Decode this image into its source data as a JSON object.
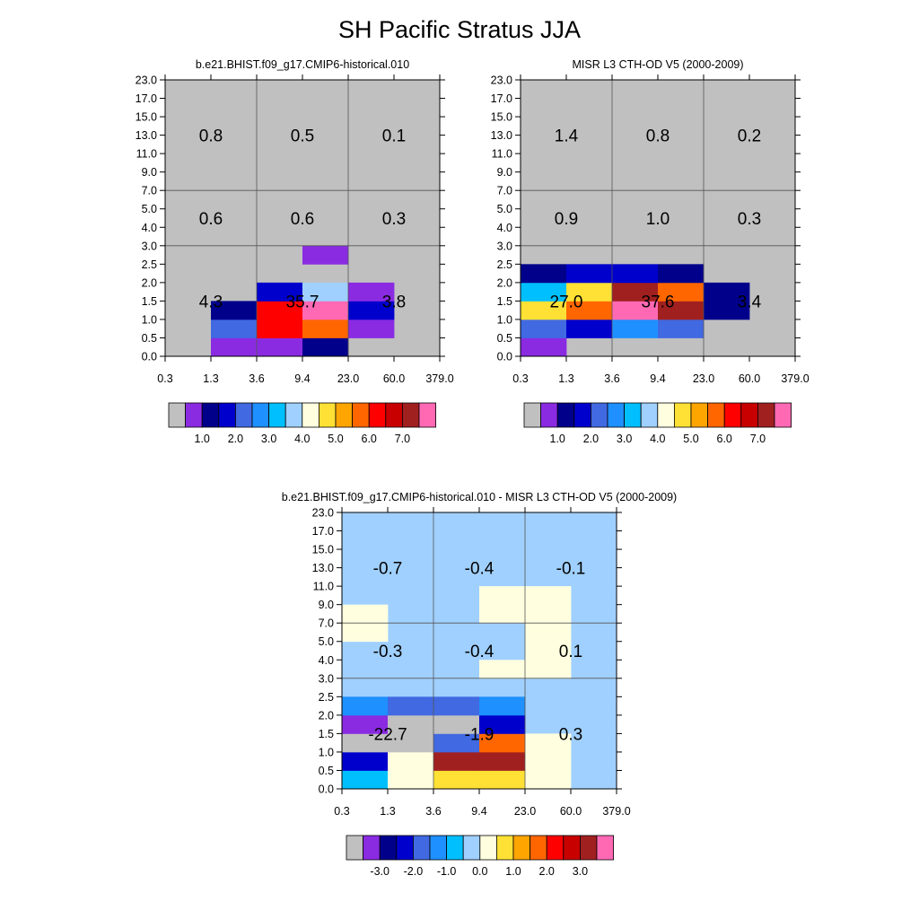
{
  "title": "SH Pacific Stratus JJA",
  "colors": {
    "background_cell": "#c0c0c0",
    "grid_line": "#555555",
    "palette": [
      "#c0c0c0",
      "#8a2be2",
      "#00008b",
      "#0000cd",
      "#4169e1",
      "#1e90ff",
      "#00bfff",
      "#a0d0ff",
      "#ffffe0",
      "#ffe135",
      "#ffa500",
      "#ff6600",
      "#ff0000",
      "#c80000",
      "#a02020",
      "#ff69b4"
    ]
  },
  "chart_data": [
    {
      "type": "heatmap",
      "name": "model",
      "title": "b.e21.BHIST.f09_g17.CMIP6-historical.010",
      "x_tick_labels": [
        "0.3",
        "1.3",
        "3.6",
        "9.4",
        "23.0",
        "60.0",
        "379.0"
      ],
      "y_tick_labels": [
        "0.0",
        "0.5",
        "1.0",
        "1.5",
        "2.0",
        "2.5",
        "3.0",
        "4.0",
        "5.0",
        "7.0",
        "9.0",
        "11.0",
        "13.0",
        "15.0",
        "17.0",
        "23.0"
      ],
      "background_color_index": 0,
      "cells": [
        {
          "col": 1,
          "row": 0,
          "c": 1
        },
        {
          "col": 2,
          "row": 0,
          "c": 1
        },
        {
          "col": 3,
          "row": 0,
          "c": 2
        },
        {
          "col": 1,
          "row": 1,
          "c": 4
        },
        {
          "col": 2,
          "row": 1,
          "c": 12
        },
        {
          "col": 3,
          "row": 1,
          "c": 11
        },
        {
          "col": 4,
          "row": 1,
          "c": 1
        },
        {
          "col": 1,
          "row": 2,
          "c": 2
        },
        {
          "col": 2,
          "row": 2,
          "c": 12
        },
        {
          "col": 3,
          "row": 2,
          "c": 15
        },
        {
          "col": 4,
          "row": 2,
          "c": 3
        },
        {
          "col": 2,
          "row": 3,
          "c": 3
        },
        {
          "col": 3,
          "row": 3,
          "c": 7
        },
        {
          "col": 4,
          "row": 3,
          "c": 1
        },
        {
          "col": 3,
          "row": 5,
          "c": 1
        }
      ],
      "boxes": [
        {
          "col": 0,
          "row": 0,
          "value": "4.3"
        },
        {
          "col": 1,
          "row": 0,
          "value": "35.7"
        },
        {
          "col": 2,
          "row": 0,
          "value": "3.8"
        },
        {
          "col": 0,
          "row": 1,
          "value": "0.6"
        },
        {
          "col": 1,
          "row": 1,
          "value": "0.6"
        },
        {
          "col": 2,
          "row": 1,
          "value": "0.3"
        },
        {
          "col": 0,
          "row": 2,
          "value": "0.8"
        },
        {
          "col": 1,
          "row": 2,
          "value": "0.5"
        },
        {
          "col": 2,
          "row": 2,
          "value": "0.1"
        }
      ],
      "colorbar": {
        "labels": [
          "1.0",
          "2.0",
          "3.0",
          "4.0",
          "5.0",
          "6.0",
          "7.0"
        ]
      }
    },
    {
      "type": "heatmap",
      "name": "obs",
      "title": "MISR L3 CTH-OD V5 (2000-2009)",
      "x_tick_labels": [
        "0.3",
        "1.3",
        "3.6",
        "9.4",
        "23.0",
        "60.0",
        "379.0"
      ],
      "y_tick_labels": [
        "0.0",
        "0.5",
        "1.0",
        "1.5",
        "2.0",
        "2.5",
        "3.0",
        "4.0",
        "5.0",
        "7.0",
        "9.0",
        "11.0",
        "13.0",
        "15.0",
        "17.0",
        "23.0"
      ],
      "background_color_index": 0,
      "cells": [
        {
          "col": 0,
          "row": 0,
          "c": 1
        },
        {
          "col": 0,
          "row": 1,
          "c": 4
        },
        {
          "col": 1,
          "row": 1,
          "c": 3
        },
        {
          "col": 2,
          "row": 1,
          "c": 5
        },
        {
          "col": 3,
          "row": 1,
          "c": 4
        },
        {
          "col": 0,
          "row": 2,
          "c": 9
        },
        {
          "col": 1,
          "row": 2,
          "c": 11
        },
        {
          "col": 2,
          "row": 2,
          "c": 15
        },
        {
          "col": 3,
          "row": 2,
          "c": 14
        },
        {
          "col": 4,
          "row": 2,
          "c": 2
        },
        {
          "col": 0,
          "row": 3,
          "c": 6
        },
        {
          "col": 1,
          "row": 3,
          "c": 9
        },
        {
          "col": 2,
          "row": 3,
          "c": 14
        },
        {
          "col": 3,
          "row": 3,
          "c": 11
        },
        {
          "col": 4,
          "row": 3,
          "c": 2
        },
        {
          "col": 0,
          "row": 4,
          "c": 2
        },
        {
          "col": 1,
          "row": 4,
          "c": 3
        },
        {
          "col": 2,
          "row": 4,
          "c": 3
        },
        {
          "col": 3,
          "row": 4,
          "c": 2
        }
      ],
      "boxes": [
        {
          "col": 0,
          "row": 0,
          "value": "27.0"
        },
        {
          "col": 1,
          "row": 0,
          "value": "37.6"
        },
        {
          "col": 2,
          "row": 0,
          "value": "3.4"
        },
        {
          "col": 0,
          "row": 1,
          "value": "0.9"
        },
        {
          "col": 1,
          "row": 1,
          "value": "1.0"
        },
        {
          "col": 2,
          "row": 1,
          "value": "0.3"
        },
        {
          "col": 0,
          "row": 2,
          "value": "1.4"
        },
        {
          "col": 1,
          "row": 2,
          "value": "0.8"
        },
        {
          "col": 2,
          "row": 2,
          "value": "0.2"
        }
      ],
      "colorbar": {
        "labels": [
          "1.0",
          "2.0",
          "3.0",
          "4.0",
          "5.0",
          "6.0",
          "7.0"
        ]
      }
    },
    {
      "type": "heatmap",
      "name": "diff",
      "title": "b.e21.BHIST.f09_g17.CMIP6-historical.010 - MISR L3 CTH-OD V5 (2000-2009)",
      "x_tick_labels": [
        "0.3",
        "1.3",
        "3.6",
        "9.4",
        "23.0",
        "60.0",
        "379.0"
      ],
      "y_tick_labels": [
        "0.0",
        "0.5",
        "1.0",
        "1.5",
        "2.0",
        "2.5",
        "3.0",
        "4.0",
        "5.0",
        "7.0",
        "9.0",
        "11.0",
        "13.0",
        "15.0",
        "17.0",
        "23.0"
      ],
      "background_color_index": 7,
      "cells": [
        {
          "col": 0,
          "row": 0,
          "c": 6
        },
        {
          "col": 1,
          "row": 0,
          "c": 8
        },
        {
          "col": 2,
          "row": 0,
          "c": 9
        },
        {
          "col": 3,
          "row": 0,
          "c": 9
        },
        {
          "col": 4,
          "row": 0,
          "c": 8
        },
        {
          "col": 0,
          "row": 1,
          "c": 3
        },
        {
          "col": 1,
          "row": 1,
          "c": 8
        },
        {
          "col": 2,
          "row": 1,
          "c": 14
        },
        {
          "col": 3,
          "row": 1,
          "c": 14
        },
        {
          "col": 4,
          "row": 1,
          "c": 8
        },
        {
          "col": 0,
          "row": 2,
          "c": 0
        },
        {
          "col": 1,
          "row": 2,
          "c": 0
        },
        {
          "col": 2,
          "row": 2,
          "c": 4
        },
        {
          "col": 3,
          "row": 2,
          "c": 11
        },
        {
          "col": 4,
          "row": 2,
          "c": 8
        },
        {
          "col": 0,
          "row": 3,
          "c": 1
        },
        {
          "col": 1,
          "row": 3,
          "c": 0
        },
        {
          "col": 2,
          "row": 3,
          "c": 0
        },
        {
          "col": 3,
          "row": 3,
          "c": 3
        },
        {
          "col": 0,
          "row": 4,
          "c": 5
        },
        {
          "col": 1,
          "row": 4,
          "c": 4
        },
        {
          "col": 2,
          "row": 4,
          "c": 4
        },
        {
          "col": 3,
          "row": 4,
          "c": 5
        },
        {
          "col": 3,
          "row": 6,
          "c": 8
        },
        {
          "col": 4,
          "row": 6,
          "c": 8
        },
        {
          "col": 4,
          "row": 7,
          "c": 8
        },
        {
          "col": 0,
          "row": 8,
          "c": 8
        },
        {
          "col": 4,
          "row": 8,
          "c": 8
        },
        {
          "col": 0,
          "row": 9,
          "c": 8
        },
        {
          "col": 3,
          "row": 9,
          "c": 8
        },
        {
          "col": 4,
          "row": 9,
          "c": 8
        },
        {
          "col": 3,
          "row": 10,
          "c": 8
        },
        {
          "col": 4,
          "row": 10,
          "c": 8
        }
      ],
      "boxes": [
        {
          "col": 0,
          "row": 0,
          "value": "-22.7"
        },
        {
          "col": 1,
          "row": 0,
          "value": "-1.9"
        },
        {
          "col": 2,
          "row": 0,
          "value": "0.3"
        },
        {
          "col": 0,
          "row": 1,
          "value": "-0.3"
        },
        {
          "col": 1,
          "row": 1,
          "value": "-0.4"
        },
        {
          "col": 2,
          "row": 1,
          "value": "0.1"
        },
        {
          "col": 0,
          "row": 2,
          "value": "-0.7"
        },
        {
          "col": 1,
          "row": 2,
          "value": "-0.4"
        },
        {
          "col": 2,
          "row": 2,
          "value": "-0.1"
        }
      ],
      "colorbar": {
        "labels": [
          "-3.0",
          "-2.0",
          "-1.0",
          "0.0",
          "1.0",
          "2.0",
          "3.0"
        ]
      }
    }
  ]
}
